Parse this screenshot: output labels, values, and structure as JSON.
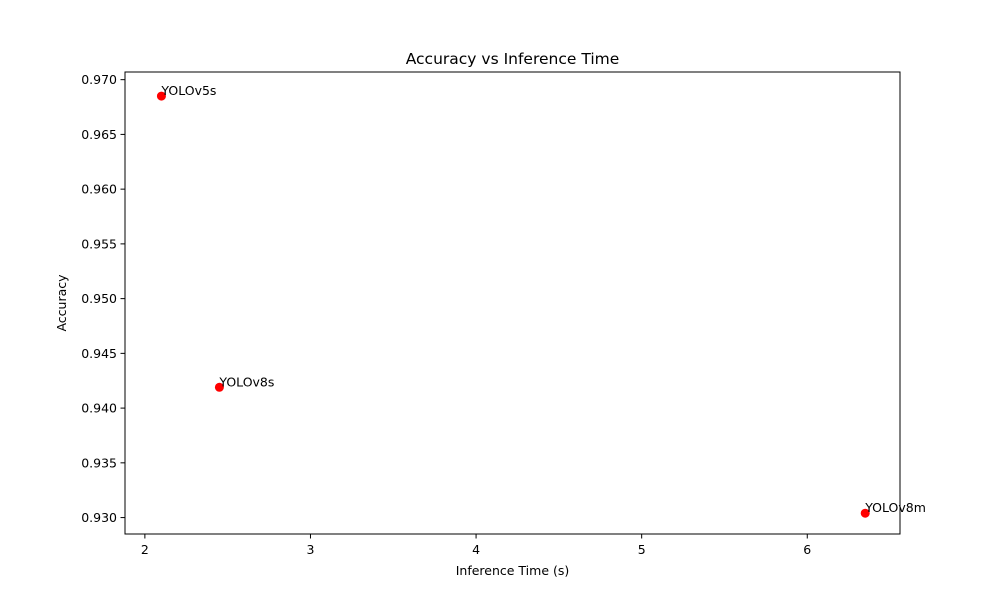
{
  "chart_data": {
    "type": "scatter",
    "title": "Accuracy vs Inference Time",
    "xlabel": "Inference Time (s)",
    "ylabel": "Accuracy",
    "xlim": [
      1.88,
      6.56
    ],
    "ylim": [
      0.9285,
      0.9707
    ],
    "xticks": [
      2,
      3,
      4,
      5,
      6
    ],
    "yticks": [
      0.93,
      0.935,
      0.94,
      0.945,
      0.95,
      0.955,
      0.96,
      0.965,
      0.97
    ],
    "ytick_labels": [
      "0.930",
      "0.935",
      "0.940",
      "0.945",
      "0.950",
      "0.955",
      "0.960",
      "0.965",
      "0.970"
    ],
    "grid": false,
    "marker_color": "#ff0000",
    "points": [
      {
        "label": "YOLOv5s",
        "x": 2.1,
        "y": 0.9685
      },
      {
        "label": "YOLOv8s",
        "x": 2.45,
        "y": 0.9419
      },
      {
        "label": "YOLOv8m",
        "x": 6.35,
        "y": 0.9304
      }
    ]
  }
}
